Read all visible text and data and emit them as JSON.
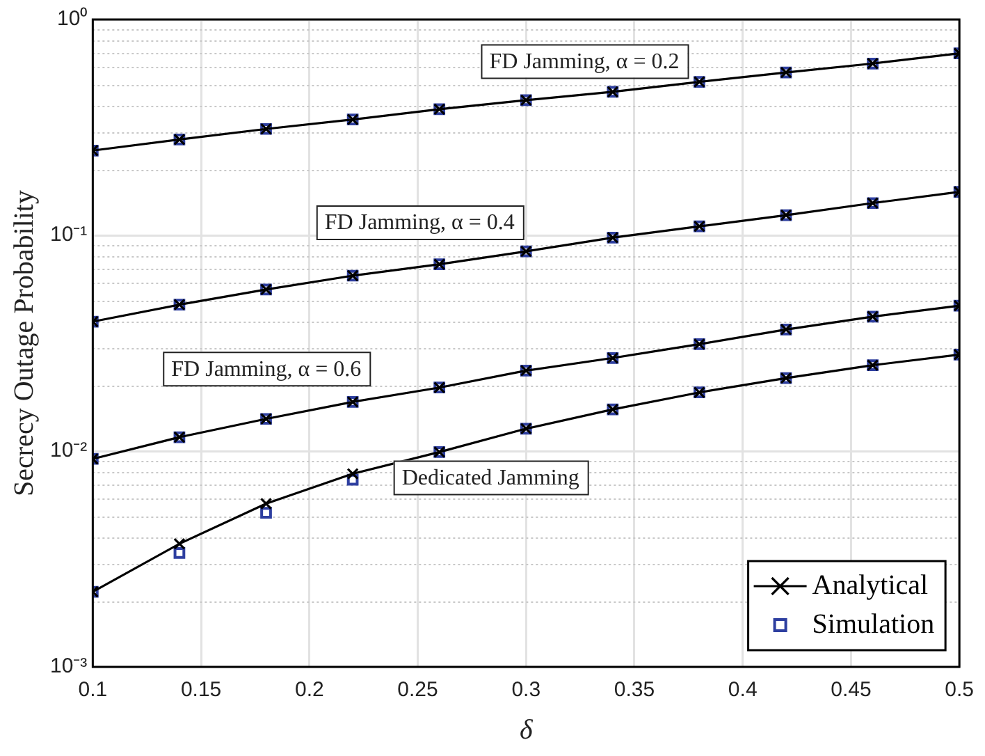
{
  "chart_data": {
    "type": "line",
    "xlabel": "δ",
    "ylabel": "Secrecy Outage Probability",
    "x": [
      0.1,
      0.14,
      0.18,
      0.22,
      0.26,
      0.3,
      0.34,
      0.38,
      0.42,
      0.46,
      0.5
    ],
    "series": [
      {
        "name": "Analytical",
        "color": "#000000",
        "marker": "cross",
        "values": [
          0.247,
          0.278,
          0.311,
          0.344,
          0.384,
          0.423,
          0.462,
          0.514,
          0.568,
          0.625,
          0.697
        ]
      },
      {
        "color": "#000000",
        "marker": "cross",
        "values": [
          0.0398,
          0.0477,
          0.0561,
          0.065,
          0.0734,
          0.0842,
          0.0975,
          0.11,
          0.124,
          0.141,
          0.159
        ]
      },
      {
        "color": "#000000",
        "marker": "cross",
        "values": [
          0.0092,
          0.0116,
          0.0141,
          0.0169,
          0.0197,
          0.0236,
          0.027,
          0.0313,
          0.0366,
          0.042,
          0.0472
        ]
      },
      {
        "color": "#000000",
        "marker": "cross",
        "values": [
          0.00223,
          0.00372,
          0.00571,
          0.00785,
          0.0099,
          0.0127,
          0.0156,
          0.0187,
          0.0218,
          0.025,
          0.028
        ]
      },
      {
        "name": "Simulation",
        "type": "scatter",
        "color": "#2e3fa0",
        "marker": "square",
        "values": [
          0.247,
          0.278,
          0.311,
          0.344,
          0.384,
          0.423,
          0.462,
          0.514,
          0.568,
          0.625,
          0.697
        ]
      },
      {
        "type": "scatter",
        "color": "#2e3fa0",
        "marker": "square",
        "values": [
          0.0398,
          0.0477,
          0.0561,
          0.065,
          0.0734,
          0.0842,
          0.0975,
          0.11,
          0.124,
          0.141,
          0.159
        ]
      },
      {
        "type": "scatter",
        "color": "#2e3fa0",
        "marker": "square",
        "values": [
          0.0092,
          0.0116,
          0.0141,
          0.0169,
          0.0197,
          0.0236,
          0.027,
          0.0313,
          0.0366,
          0.042,
          0.0472
        ]
      },
      {
        "type": "scatter",
        "color": "#2e3fa0",
        "marker": "square",
        "values": [
          0.00223,
          0.00337,
          0.00518,
          0.00737,
          0.0099,
          0.0127,
          0.0156,
          0.0187,
          0.0218,
          0.025,
          0.028
        ]
      }
    ],
    "annotations": [
      "FD Jamming, α = 0.2",
      "FD Jamming, α = 0.4",
      "FD Jamming, α = 0.6",
      "Dedicated Jamming"
    ],
    "log": "y",
    "xlim": [
      0.1,
      0.5
    ],
    "xticks": [
      0.1,
      0.15,
      0.2,
      0.25,
      0.3,
      0.35,
      0.4,
      0.45,
      0.5
    ],
    "ylim": [
      0.001,
      1
    ],
    "yticks": [
      {
        "value": 0.001,
        "label": "10⁻³"
      },
      {
        "value": 0.01,
        "label": "10⁻²"
      },
      {
        "value": 0.1,
        "label": "10⁻¹"
      },
      {
        "value": 1,
        "label": "10⁰"
      }
    ],
    "grid": true,
    "legend": "bottom right"
  }
}
